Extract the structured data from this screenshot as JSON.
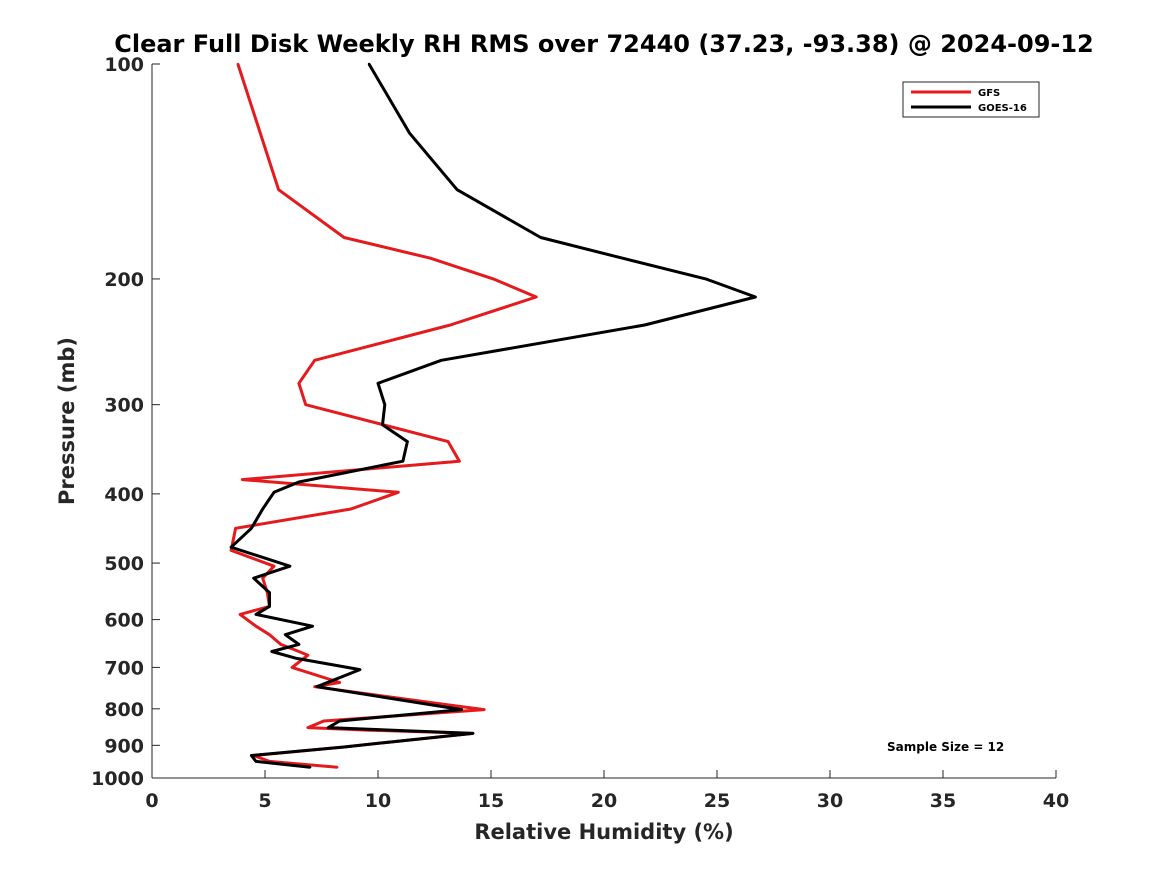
{
  "chart_data": {
    "type": "line",
    "title": "Clear Full Disk Weekly RH RMS over 72440 (37.23, -93.38) @ 2024-09-12",
    "xlabel": "Relative Humidity (%)",
    "ylabel": "Pressure (mb)",
    "xlim": [
      0,
      40
    ],
    "ylim": [
      100,
      1000
    ],
    "y_scale": "log",
    "y_reversed": true,
    "x_ticks": [
      "0",
      "5",
      "10",
      "15",
      "20",
      "25",
      "30",
      "35",
      "40"
    ],
    "y_ticks": [
      "100",
      "200",
      "300",
      "400",
      "500",
      "600",
      "700",
      "800",
      "900",
      "1000"
    ],
    "grid": false,
    "legend_position": "top-right",
    "annotation": "Sample Size = 12",
    "series": [
      {
        "name": "GFS",
        "color": "#e41a1c",
        "points": [
          [
            3.8,
            100
          ],
          [
            5.6,
            150
          ],
          [
            8.5,
            175
          ],
          [
            12.3,
            187
          ],
          [
            15.1,
            200
          ],
          [
            17.0,
            212
          ],
          [
            13.2,
            232
          ],
          [
            7.2,
            260
          ],
          [
            6.5,
            280
          ],
          [
            6.8,
            300
          ],
          [
            13.1,
            338
          ],
          [
            13.6,
            360
          ],
          [
            4.0,
            382
          ],
          [
            10.9,
            398
          ],
          [
            8.8,
            420
          ],
          [
            3.7,
            447
          ],
          [
            3.5,
            480
          ],
          [
            5.4,
            505
          ],
          [
            4.9,
            525
          ],
          [
            5.1,
            550
          ],
          [
            5.2,
            575
          ],
          [
            3.9,
            590
          ],
          [
            4.6,
            613
          ],
          [
            5.2,
            630
          ],
          [
            5.7,
            650
          ],
          [
            6.5,
            665
          ],
          [
            6.9,
            673
          ],
          [
            6.2,
            700
          ],
          [
            8.3,
            735
          ],
          [
            7.2,
            745
          ],
          [
            13.1,
            790
          ],
          [
            14.7,
            802
          ],
          [
            7.6,
            832
          ],
          [
            6.9,
            850
          ],
          [
            9.5,
            857
          ],
          [
            14.2,
            866
          ],
          [
            10.3,
            892
          ],
          [
            8.5,
            905
          ],
          [
            4.5,
            930
          ],
          [
            5.2,
            948
          ],
          [
            8.2,
            966
          ]
        ]
      },
      {
        "name": "GOES-16",
        "color": "#000000",
        "points": [
          [
            9.6,
            100
          ],
          [
            11.4,
            125
          ],
          [
            13.5,
            150
          ],
          [
            17.2,
            175
          ],
          [
            20.8,
            187
          ],
          [
            24.5,
            200
          ],
          [
            26.7,
            212
          ],
          [
            21.8,
            232
          ],
          [
            12.8,
            260
          ],
          [
            10.0,
            280
          ],
          [
            10.3,
            300
          ],
          [
            10.2,
            320
          ],
          [
            11.3,
            338
          ],
          [
            11.1,
            360
          ],
          [
            6.5,
            385
          ],
          [
            5.4,
            398
          ],
          [
            4.9,
            420
          ],
          [
            4.4,
            447
          ],
          [
            3.5,
            475
          ],
          [
            6.1,
            505
          ],
          [
            4.5,
            525
          ],
          [
            5.2,
            550
          ],
          [
            5.2,
            575
          ],
          [
            4.6,
            590
          ],
          [
            7.1,
            613
          ],
          [
            5.9,
            630
          ],
          [
            6.5,
            650
          ],
          [
            5.3,
            665
          ],
          [
            6.4,
            680
          ],
          [
            9.2,
            705
          ],
          [
            7.3,
            745
          ],
          [
            13.7,
            802
          ],
          [
            8.3,
            832
          ],
          [
            7.8,
            850
          ],
          [
            14.2,
            866
          ],
          [
            10.3,
            892
          ],
          [
            8.5,
            905
          ],
          [
            4.4,
            930
          ],
          [
            4.6,
            948
          ],
          [
            7.0,
            966
          ]
        ]
      }
    ]
  }
}
